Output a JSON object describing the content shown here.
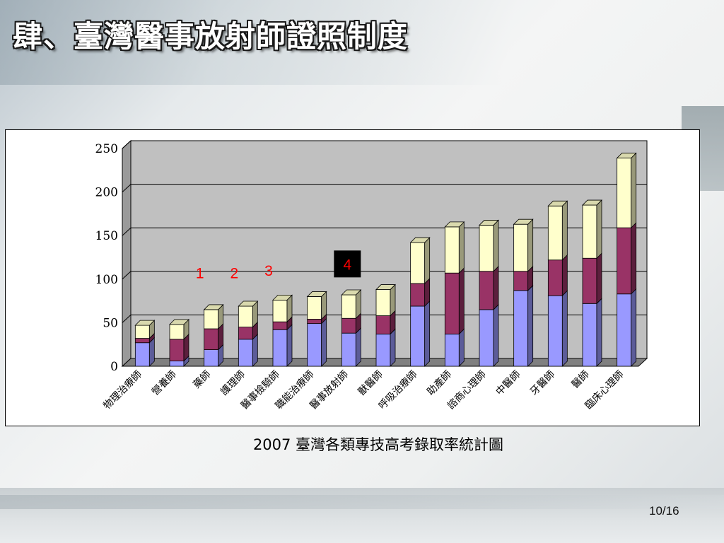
{
  "slide": {
    "title": "肆、臺灣醫事放射師證照制度",
    "caption": "2007 臺灣各類專技高考錄取率統計圖",
    "page_number": "10/16"
  },
  "chart_data": {
    "type": "bar",
    "stacked": true,
    "three_d": true,
    "title": "",
    "xlabel": "",
    "ylabel": "",
    "ylim": [
      0,
      250
    ],
    "yticks": [
      0,
      50,
      100,
      150,
      200,
      250
    ],
    "grid": true,
    "legend": "none",
    "categories": [
      "物理治療師",
      "營養師",
      "藥師",
      "護理師",
      "醫事檢驗師",
      "職能治療師",
      "醫事放射師",
      "獸醫師",
      "呼吸治療師",
      "助產師",
      "諮商心理師",
      "中醫師",
      "牙醫師",
      "醫師",
      "臨床心理師"
    ],
    "series": [
      {
        "color": "#9999ff",
        "values": [
          27,
          6,
          19,
          31,
          42,
          49,
          38,
          37,
          69,
          37,
          65,
          87,
          81,
          72,
          83
        ]
      },
      {
        "color": "#993366",
        "values": [
          5,
          25,
          24,
          14,
          9,
          5,
          17,
          21,
          26,
          70,
          44,
          22,
          41,
          52,
          76
        ]
      },
      {
        "color": "#ffffcc",
        "values": [
          15,
          17,
          22,
          24,
          25,
          26,
          27,
          30,
          47,
          53,
          53,
          54,
          62,
          61,
          80
        ]
      }
    ],
    "annotations": [
      {
        "text": "1",
        "category": "藥師",
        "y": 101,
        "color": "#ff0000",
        "boxed": false
      },
      {
        "text": "2",
        "category": "護理師",
        "y": 101,
        "color": "#ff0000",
        "boxed": false
      },
      {
        "text": "3",
        "category": "醫事檢驗師",
        "y": 104,
        "color": "#ff0000",
        "boxed": false
      },
      {
        "text": "4",
        "category": "醫事放射師",
        "y": 115,
        "color": "#ff0000",
        "boxed": true
      }
    ]
  }
}
